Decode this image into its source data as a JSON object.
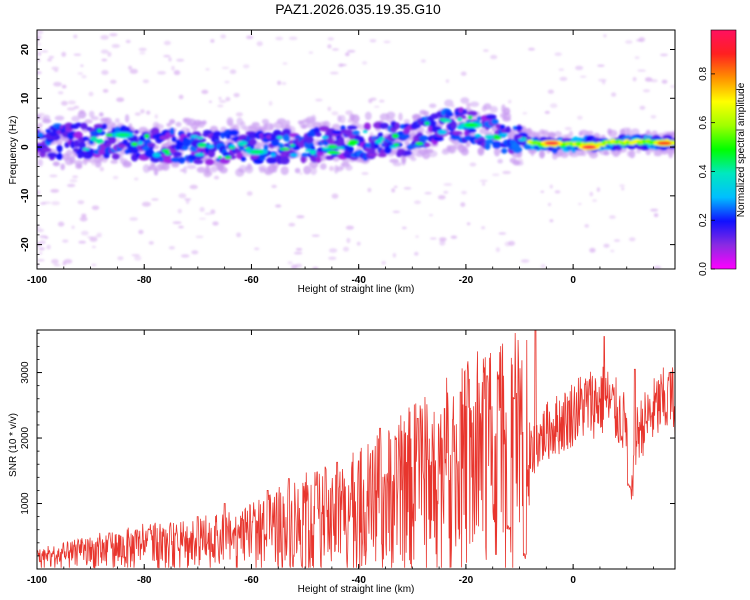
{
  "figure": {
    "title": "PAZ1.2026.035.19.35.G10"
  },
  "chart_data": [
    {
      "type": "heatmap",
      "id": "spectrogram",
      "xlabel": "Height of straight line (km)",
      "ylabel": "Frequency (Hz)",
      "xlim": [
        -100,
        19
      ],
      "ylim": [
        -25,
        24
      ],
      "x_ticks": [
        -100,
        -80,
        -60,
        -40,
        -20,
        0
      ],
      "y_ticks": [
        -20,
        -10,
        0,
        10,
        20
      ],
      "colorbar": {
        "label": "Normalized spectral amplitude",
        "range": [
          0,
          0.98
        ],
        "ticks": [
          0.0,
          0.2,
          0.4,
          0.6,
          0.8
        ],
        "tick_labels": [
          "0.0",
          "0.2",
          "0.4",
          "0.6",
          "0.8"
        ],
        "colormap": [
          "#ff00ff",
          "#8a2be2",
          "#1010ff",
          "#00bfff",
          "#00e8c0",
          "#00ff00",
          "#a0ff00",
          "#ffff00",
          "#ff9000",
          "#ff2020",
          "#ff1060"
        ]
      },
      "band_center_hz": [
        {
          "x": -100,
          "f": 1.0
        },
        {
          "x": -90,
          "f": 1.5
        },
        {
          "x": -80,
          "f": 0.5
        },
        {
          "x": -70,
          "f": 0.0
        },
        {
          "x": -60,
          "f": 0.0
        },
        {
          "x": -50,
          "f": 0.5
        },
        {
          "x": -40,
          "f": 1.0
        },
        {
          "x": -30,
          "f": 2.0
        },
        {
          "x": -25,
          "f": 4.0
        },
        {
          "x": -20,
          "f": 4.5
        },
        {
          "x": -15,
          "f": 3.0
        },
        {
          "x": -10,
          "f": 1.5
        },
        {
          "x": -5,
          "f": 0.5
        },
        {
          "x": 0,
          "f": 0.5
        },
        {
          "x": 10,
          "f": 1.0
        },
        {
          "x": 19,
          "f": 1.0
        }
      ],
      "band_peaks": [
        {
          "x": -4,
          "f": 0.8,
          "amplitude": 0.95
        },
        {
          "x": 3,
          "f": 0.0,
          "amplitude": 0.95
        },
        {
          "x": 17,
          "f": 0.8,
          "amplitude": 0.9
        },
        {
          "x": -19,
          "f": 4.5,
          "amplitude": 0.5
        },
        {
          "x": -59,
          "f": -1.0,
          "amplitude": 0.45
        },
        {
          "x": -84,
          "f": 2.5,
          "amplitude": 0.45
        }
      ]
    },
    {
      "type": "line",
      "id": "snr",
      "xlabel": "Height of straight line (km)",
      "ylabel": "SNR (10 * v/v)",
      "xlim": [
        -100,
        19
      ],
      "ylim": [
        0,
        3650
      ],
      "x_ticks": [
        -100,
        -80,
        -60,
        -40,
        -20,
        0
      ],
      "y_ticks": [
        1000,
        2000,
        3000
      ],
      "color": "#e8352d",
      "series": [
        {
          "name": "SNR",
          "x": [
            -100,
            -95,
            -90,
            -85,
            -80,
            -75,
            -70,
            -65,
            -60,
            -55,
            -50,
            -45,
            -40,
            -35,
            -30,
            -25,
            -20,
            -15,
            -12,
            -10,
            -8,
            -7,
            -5,
            -3,
            -1,
            0,
            2,
            4,
            5,
            6,
            7,
            8,
            10,
            11,
            12,
            14,
            16,
            19
          ],
          "values": [
            150,
            200,
            250,
            300,
            330,
            350,
            380,
            420,
            480,
            600,
            700,
            800,
            900,
            1050,
            1250,
            1400,
            1550,
            1650,
            1750,
            1750,
            1700,
            1900,
            2100,
            2200,
            2300,
            2400,
            2500,
            2550,
            2550,
            2600,
            2500,
            2400,
            2200,
            1200,
            2100,
            2300,
            2500,
            2600
          ],
          "spikes": [
            {
              "x": -86.5,
              "value": 550
            },
            {
              "x": -79,
              "value": 600
            },
            {
              "x": -70,
              "value": 800
            },
            {
              "x": -65,
              "value": 1000
            },
            {
              "x": -57,
              "value": 1200
            },
            {
              "x": -53,
              "value": 1380
            },
            {
              "x": -48,
              "value": 1280
            },
            {
              "x": -44,
              "value": 1630
            },
            {
              "x": -40,
              "value": 1650
            },
            {
              "x": -36,
              "value": 2150
            },
            {
              "x": -33,
              "value": 2000
            },
            {
              "x": -29,
              "value": 2300
            },
            {
              "x": -24,
              "value": 2450
            },
            {
              "x": -21,
              "value": 2700
            },
            {
              "x": -16,
              "value": 2950
            },
            {
              "x": -14,
              "value": 2900
            },
            {
              "x": -11,
              "value": 2600
            },
            {
              "x": -7,
              "value": 3650
            },
            {
              "x": 5.8,
              "value": 3550
            },
            {
              "x": 11.5,
              "value": 3050
            },
            {
              "x": 18,
              "value": 3000
            }
          ],
          "dips": [
            {
              "x": -9,
              "value": 150
            },
            {
              "x": -12,
              "value": 600
            },
            {
              "x": 10.5,
              "value": 1200
            }
          ]
        }
      ]
    }
  ]
}
